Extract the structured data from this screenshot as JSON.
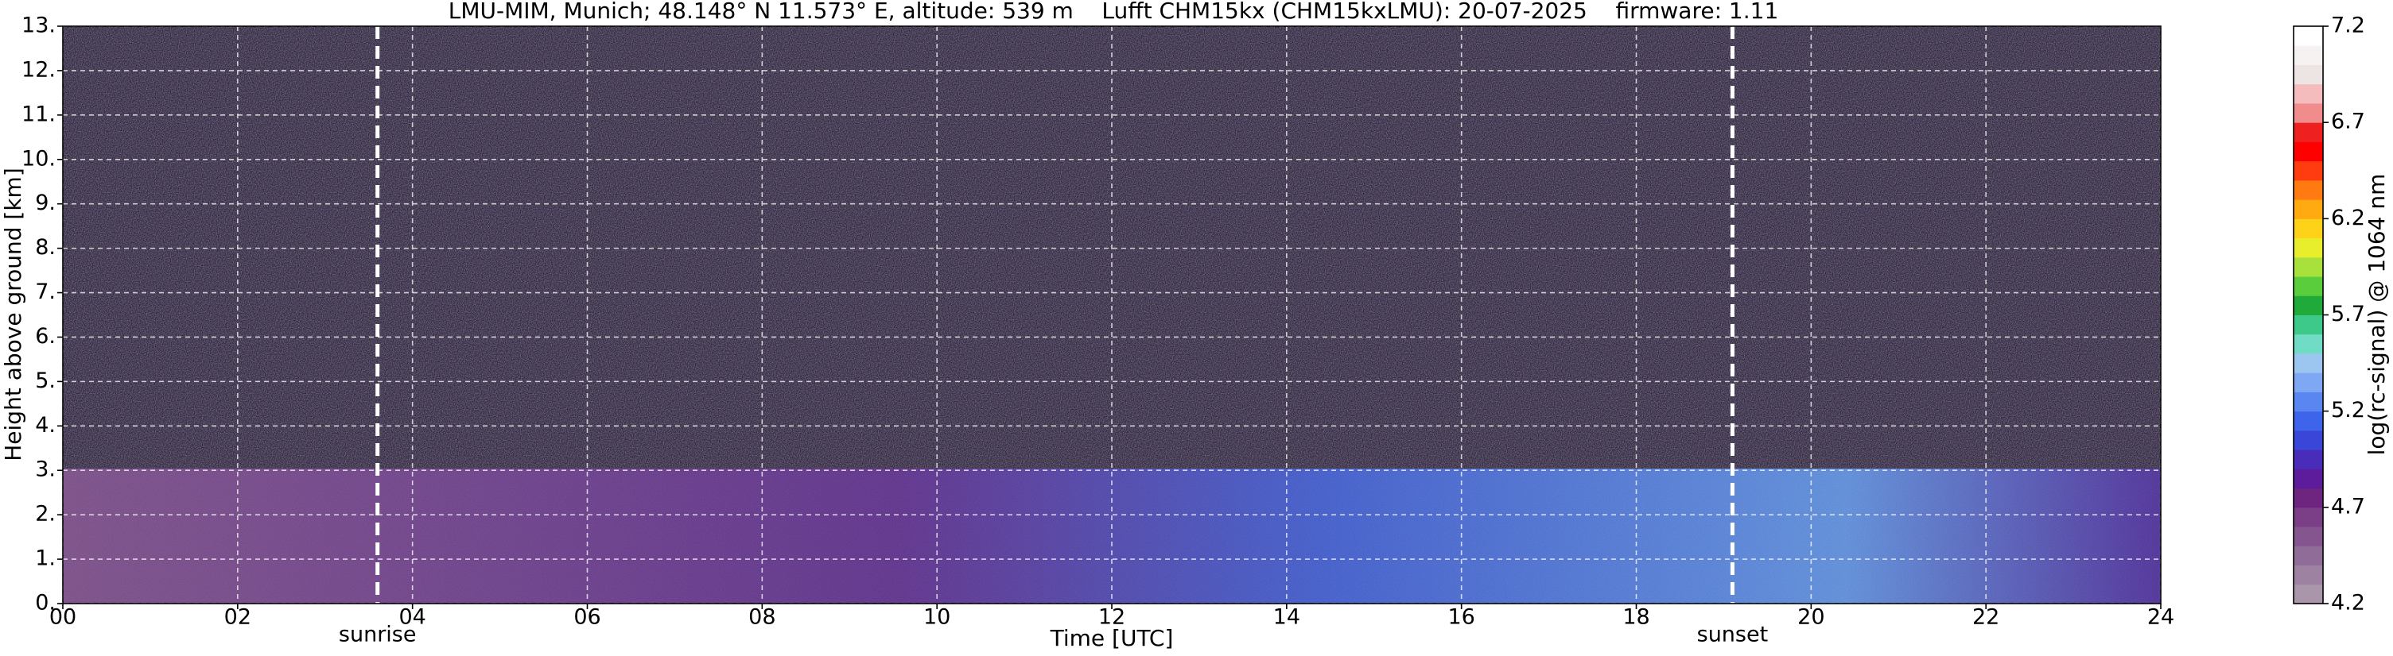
{
  "chart_data": {
    "type": "heatmap",
    "title": "LMU-MIM, Munich; 48.148° N 11.573° E, altitude: 539 m    Lufft CHM15kx (CHM15kxLMU): 20-07-2025    firmware: 1.11",
    "xlabel": "Time [UTC]",
    "ylabel": "Height above ground [km]",
    "xlim": [
      0,
      24
    ],
    "ylim": [
      0,
      13
    ],
    "xticks": [
      {
        "value": 0,
        "label": "00"
      },
      {
        "value": 2,
        "label": "02"
      },
      {
        "value": 4,
        "label": "04"
      },
      {
        "value": 6,
        "label": "06"
      },
      {
        "value": 8,
        "label": "08"
      },
      10,
      12,
      14,
      16,
      18,
      20,
      22,
      24
    ],
    "yticks": [
      {
        "value": 0,
        "label": "0."
      },
      {
        "value": 1,
        "label": "1."
      },
      {
        "value": 2,
        "label": "2."
      },
      {
        "value": 3,
        "label": "3."
      },
      {
        "value": 4,
        "label": "4."
      },
      {
        "value": 5,
        "label": "5."
      },
      {
        "value": 6,
        "label": "6."
      },
      {
        "value": 7,
        "label": "7."
      },
      {
        "value": 8,
        "label": "8."
      },
      {
        "value": 9,
        "label": "9."
      },
      {
        "value": 10,
        "label": "10."
      },
      {
        "value": 11,
        "label": "11."
      },
      {
        "value": 12,
        "label": "12."
      },
      {
        "value": 13,
        "label": "13."
      }
    ],
    "grid": true,
    "annotations": [
      {
        "text": "sunrise",
        "x": 3.6
      },
      {
        "text": "sunset",
        "x": 19.1
      }
    ],
    "colorbar": {
      "label": "log(rc-signal) @ 1064 nm",
      "lim": [
        4.2,
        7.2
      ],
      "ticks": [
        4.2,
        4.7,
        5.2,
        5.7,
        6.2,
        6.7,
        7.2
      ],
      "colors": [
        "#a996ab",
        "#9d82a2",
        "#906c98",
        "#84558e",
        "#7a3f86",
        "#6e2580",
        "#5c1c9c",
        "#4a2cba",
        "#3a46d8",
        "#3e64ec",
        "#5a86f2",
        "#7ea8f4",
        "#9cc6f0",
        "#70dcc6",
        "#3cc98a",
        "#1faa3a",
        "#5acd3c",
        "#a8e03c",
        "#e8ee2c",
        "#ffd21a",
        "#ffaa10",
        "#ff7a10",
        "#ff3c10",
        "#ff0000",
        "#ee2020",
        "#f08c8c",
        "#f4bcbc",
        "#ede4e4",
        "#f6f2f2",
        "#ffffff"
      ]
    }
  }
}
